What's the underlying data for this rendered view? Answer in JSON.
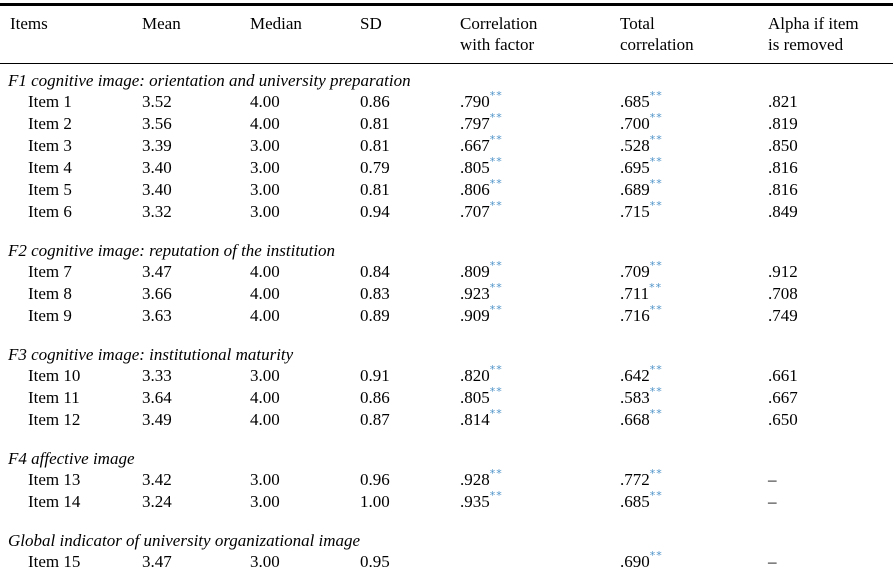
{
  "colors": {
    "significance_marker": "#4e93c8",
    "text": "#000000",
    "rule": "#000000"
  },
  "header": {
    "columns": [
      {
        "label": "Items"
      },
      {
        "label": "Mean"
      },
      {
        "label": "Median"
      },
      {
        "label": "SD"
      },
      {
        "label": "Correlation\nwith factor"
      },
      {
        "label": "Total\ncorrelation"
      },
      {
        "label": "Alpha if item\nis removed"
      }
    ]
  },
  "sections": [
    {
      "label": "F1 cognitive image: orientation and university preparation",
      "rows": [
        {
          "item": "Item 1",
          "mean": "3.52",
          "median": "4.00",
          "sd": "0.86",
          "correlation_with_factor": ".790",
          "correlation_with_factor_sig": "**",
          "total_correlation": ".685",
          "total_correlation_sig": "**",
          "alpha_if_item_removed": ".821"
        },
        {
          "item": "Item 2",
          "mean": "3.56",
          "median": "4.00",
          "sd": "0.81",
          "correlation_with_factor": ".797",
          "correlation_with_factor_sig": "**",
          "total_correlation": ".700",
          "total_correlation_sig": "**",
          "alpha_if_item_removed": ".819"
        },
        {
          "item": "Item 3",
          "mean": "3.39",
          "median": "3.00",
          "sd": "0.81",
          "correlation_with_factor": ".667",
          "correlation_with_factor_sig": "**",
          "total_correlation": ".528",
          "total_correlation_sig": "**",
          "alpha_if_item_removed": ".850"
        },
        {
          "item": "Item 4",
          "mean": "3.40",
          "median": "3.00",
          "sd": "0.79",
          "correlation_with_factor": ".805",
          "correlation_with_factor_sig": "**",
          "total_correlation": ".695",
          "total_correlation_sig": "**",
          "alpha_if_item_removed": ".816"
        },
        {
          "item": "Item 5",
          "mean": "3.40",
          "median": "3.00",
          "sd": "0.81",
          "correlation_with_factor": ".806",
          "correlation_with_factor_sig": "**",
          "total_correlation": ".689",
          "total_correlation_sig": "**",
          "alpha_if_item_removed": ".816"
        },
        {
          "item": "Item 6",
          "mean": "3.32",
          "median": "3.00",
          "sd": "0.94",
          "correlation_with_factor": ".707",
          "correlation_with_factor_sig": "**",
          "total_correlation": ".715",
          "total_correlation_sig": "**",
          "alpha_if_item_removed": ".849"
        }
      ]
    },
    {
      "label": "F2 cognitive image: reputation of the institution",
      "rows": [
        {
          "item": "Item 7",
          "mean": "3.47",
          "median": "4.00",
          "sd": "0.84",
          "correlation_with_factor": ".809",
          "correlation_with_factor_sig": "**",
          "total_correlation": ".709",
          "total_correlation_sig": "**",
          "alpha_if_item_removed": ".912"
        },
        {
          "item": "Item 8",
          "mean": "3.66",
          "median": "4.00",
          "sd": "0.83",
          "correlation_with_factor": ".923",
          "correlation_with_factor_sig": "**",
          "total_correlation": ".711",
          "total_correlation_sig": "**",
          "alpha_if_item_removed": ".708"
        },
        {
          "item": "Item 9",
          "mean": "3.63",
          "median": "4.00",
          "sd": "0.89",
          "correlation_with_factor": ".909",
          "correlation_with_factor_sig": "**",
          "total_correlation": ".716",
          "total_correlation_sig": "**",
          "alpha_if_item_removed": ".749"
        }
      ]
    },
    {
      "label": "F3 cognitive image: institutional maturity",
      "rows": [
        {
          "item": "Item 10",
          "mean": "3.33",
          "median": "3.00",
          "sd": "0.91",
          "correlation_with_factor": ".820",
          "correlation_with_factor_sig": "**",
          "total_correlation": ".642",
          "total_correlation_sig": "**",
          "alpha_if_item_removed": ".661"
        },
        {
          "item": "Item 11",
          "mean": "3.64",
          "median": "4.00",
          "sd": "0.86",
          "correlation_with_factor": ".805",
          "correlation_with_factor_sig": "**",
          "total_correlation": ".583",
          "total_correlation_sig": "**",
          "alpha_if_item_removed": ".667"
        },
        {
          "item": "Item 12",
          "mean": "3.49",
          "median": "4.00",
          "sd": "0.87",
          "correlation_with_factor": ".814",
          "correlation_with_factor_sig": "**",
          "total_correlation": ".668",
          "total_correlation_sig": "**",
          "alpha_if_item_removed": ".650"
        }
      ]
    },
    {
      "label": "F4 affective image",
      "rows": [
        {
          "item": "Item 13",
          "mean": "3.42",
          "median": "3.00",
          "sd": "0.96",
          "correlation_with_factor": ".928",
          "correlation_with_factor_sig": "**",
          "total_correlation": ".772",
          "total_correlation_sig": "**",
          "alpha_if_item_removed": "–"
        },
        {
          "item": "Item 14",
          "mean": "3.24",
          "median": "3.00",
          "sd": "1.00",
          "correlation_with_factor": ".935",
          "correlation_with_factor_sig": "**",
          "total_correlation": ".685",
          "total_correlation_sig": "**",
          "alpha_if_item_removed": "–"
        }
      ]
    },
    {
      "label": "Global indicator of university organizational image",
      "rows": [
        {
          "item": "Item 15",
          "mean": "3.47",
          "median": "3.00",
          "sd": "0.95",
          "correlation_with_factor": "",
          "correlation_with_factor_sig": "",
          "total_correlation": ".690",
          "total_correlation_sig": "**",
          "alpha_if_item_removed": "–"
        }
      ]
    }
  ]
}
